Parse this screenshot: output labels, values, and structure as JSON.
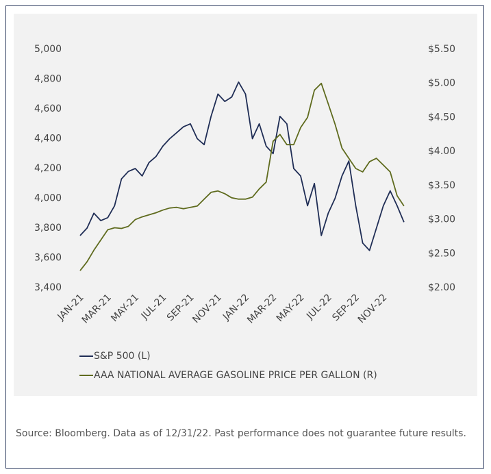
{
  "chart_data": {
    "type": "line",
    "categories": [
      "JAN-21",
      null,
      null,
      null,
      "MAR-21",
      null,
      null,
      null,
      "MAY-21",
      null,
      null,
      null,
      "JUL-21",
      null,
      null,
      null,
      "SEP-21",
      null,
      null,
      null,
      "NOV-21",
      null,
      null,
      null,
      "JAN-22",
      null,
      null,
      null,
      "MAR-22",
      null,
      null,
      null,
      "MAY-22",
      null,
      null,
      null,
      "JUL-22",
      null,
      null,
      null,
      "SEP-22",
      null,
      null,
      null,
      "NOV-22",
      null,
      null,
      null
    ],
    "series": [
      {
        "name": "S&P 500 (L)",
        "color": "#1f2d55",
        "axis": "y",
        "values": [
          3750,
          3800,
          3900,
          3850,
          3870,
          3950,
          4130,
          4180,
          4200,
          4150,
          4240,
          4280,
          4350,
          4400,
          4440,
          4480,
          4500,
          4400,
          4360,
          4550,
          4700,
          4650,
          4680,
          4780,
          4700,
          4400,
          4500,
          4350,
          4300,
          4550,
          4500,
          4200,
          4150,
          3950,
          4100,
          3750,
          3900,
          4000,
          4150,
          4250,
          3950,
          3700,
          3650,
          3800,
          3950,
          4050,
          3950,
          3840
        ]
      },
      {
        "name": "AAA NATIONAL AVERAGE GASOLINE PRICE PER GALLON (R)",
        "color": "#5f6b1e",
        "axis": "y2",
        "values": [
          2.25,
          2.38,
          2.55,
          2.7,
          2.85,
          2.88,
          2.87,
          2.9,
          3.0,
          3.04,
          3.07,
          3.1,
          3.14,
          3.17,
          3.18,
          3.16,
          3.18,
          3.2,
          3.3,
          3.4,
          3.42,
          3.38,
          3.32,
          3.3,
          3.3,
          3.33,
          3.45,
          3.55,
          4.15,
          4.25,
          4.1,
          4.1,
          4.35,
          4.5,
          4.9,
          5.0,
          4.7,
          4.4,
          4.05,
          3.9,
          3.75,
          3.7,
          3.85,
          3.9,
          3.8,
          3.7,
          3.35,
          3.2
        ]
      }
    ],
    "ylim": [
      3400,
      5000
    ],
    "yticks": [
      {
        "value": 3400,
        "label": "3,400"
      },
      {
        "value": 3600,
        "label": "3,600"
      },
      {
        "value": 3800,
        "label": "3,800"
      },
      {
        "value": 4000,
        "label": "4,000"
      },
      {
        "value": 4200,
        "label": "4,200"
      },
      {
        "value": 4400,
        "label": "4,400"
      },
      {
        "value": 4600,
        "label": "4,600"
      },
      {
        "value": 4800,
        "label": "4,800"
      },
      {
        "value": 5000,
        "label": "5,000"
      }
    ],
    "y2lim": [
      2.0,
      5.5
    ],
    "y2ticks": [
      {
        "value": 2.0,
        "label": "$2.00"
      },
      {
        "value": 2.5,
        "label": "$2.50"
      },
      {
        "value": 3.0,
        "label": "$3.00"
      },
      {
        "value": 3.5,
        "label": "$3.50"
      },
      {
        "value": 4.0,
        "label": "$4.00"
      },
      {
        "value": 4.5,
        "label": "$4.50"
      },
      {
        "value": 5.0,
        "label": "$5.00"
      },
      {
        "value": 5.5,
        "label": "$5.50"
      }
    ],
    "grid": false,
    "legend": "bottom-left",
    "source": "Source: Bloomberg. Data as of 12/31/22. Past performance does not guarantee future results."
  }
}
